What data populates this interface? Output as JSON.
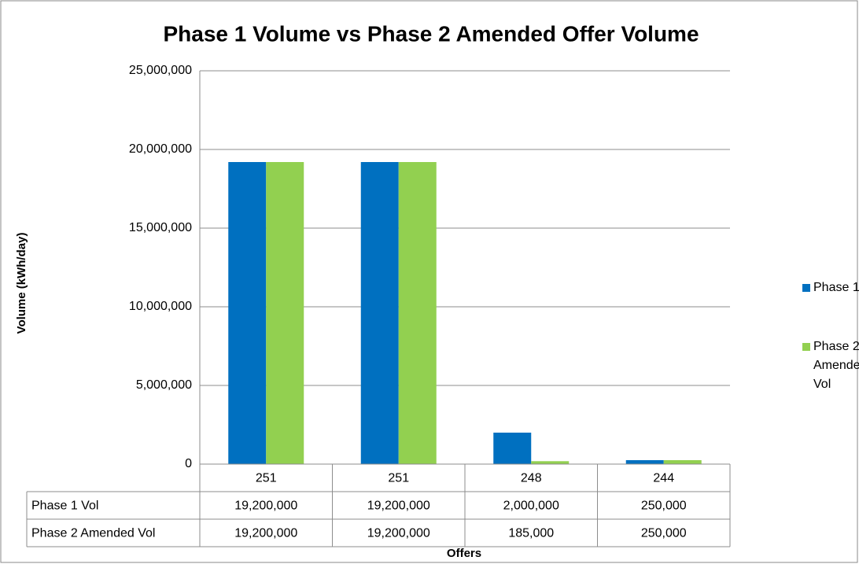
{
  "chart_data": {
    "type": "bar",
    "title": "Phase 1 Volume vs Phase 2 Amended Offer Volume",
    "x_label": "Offers",
    "y_label": "Volume (kWh/day)",
    "categories": [
      "251",
      "251",
      "248",
      "244"
    ],
    "series": [
      {
        "name": "Phase 1 Vol",
        "color": "#0070c0",
        "values": [
          19200000,
          19200000,
          2000000,
          250000
        ],
        "value_labels": [
          "19,200,000",
          "19,200,000",
          "2,000,000",
          "250,000"
        ]
      },
      {
        "name": "Phase 2 Amended Vol",
        "color": "#92d050",
        "values": [
          19200000,
          19200000,
          185000,
          250000
        ],
        "value_labels": [
          "19,200,000",
          "19,200,000",
          "185,000",
          "250,000"
        ]
      }
    ],
    "ylim": [
      0,
      25000000
    ],
    "yticks": [
      0,
      {
        "value": 5000000,
        "label": "5,000,000"
      },
      {
        "value": 10000000,
        "label": "10,000,000"
      },
      {
        "value": 15000000,
        "label": "15,000,000"
      },
      {
        "value": 20000000,
        "label": "20,000,000"
      },
      {
        "value": 25000000,
        "label": "25,000,000"
      }
    ],
    "grid": true,
    "legend": "right"
  }
}
